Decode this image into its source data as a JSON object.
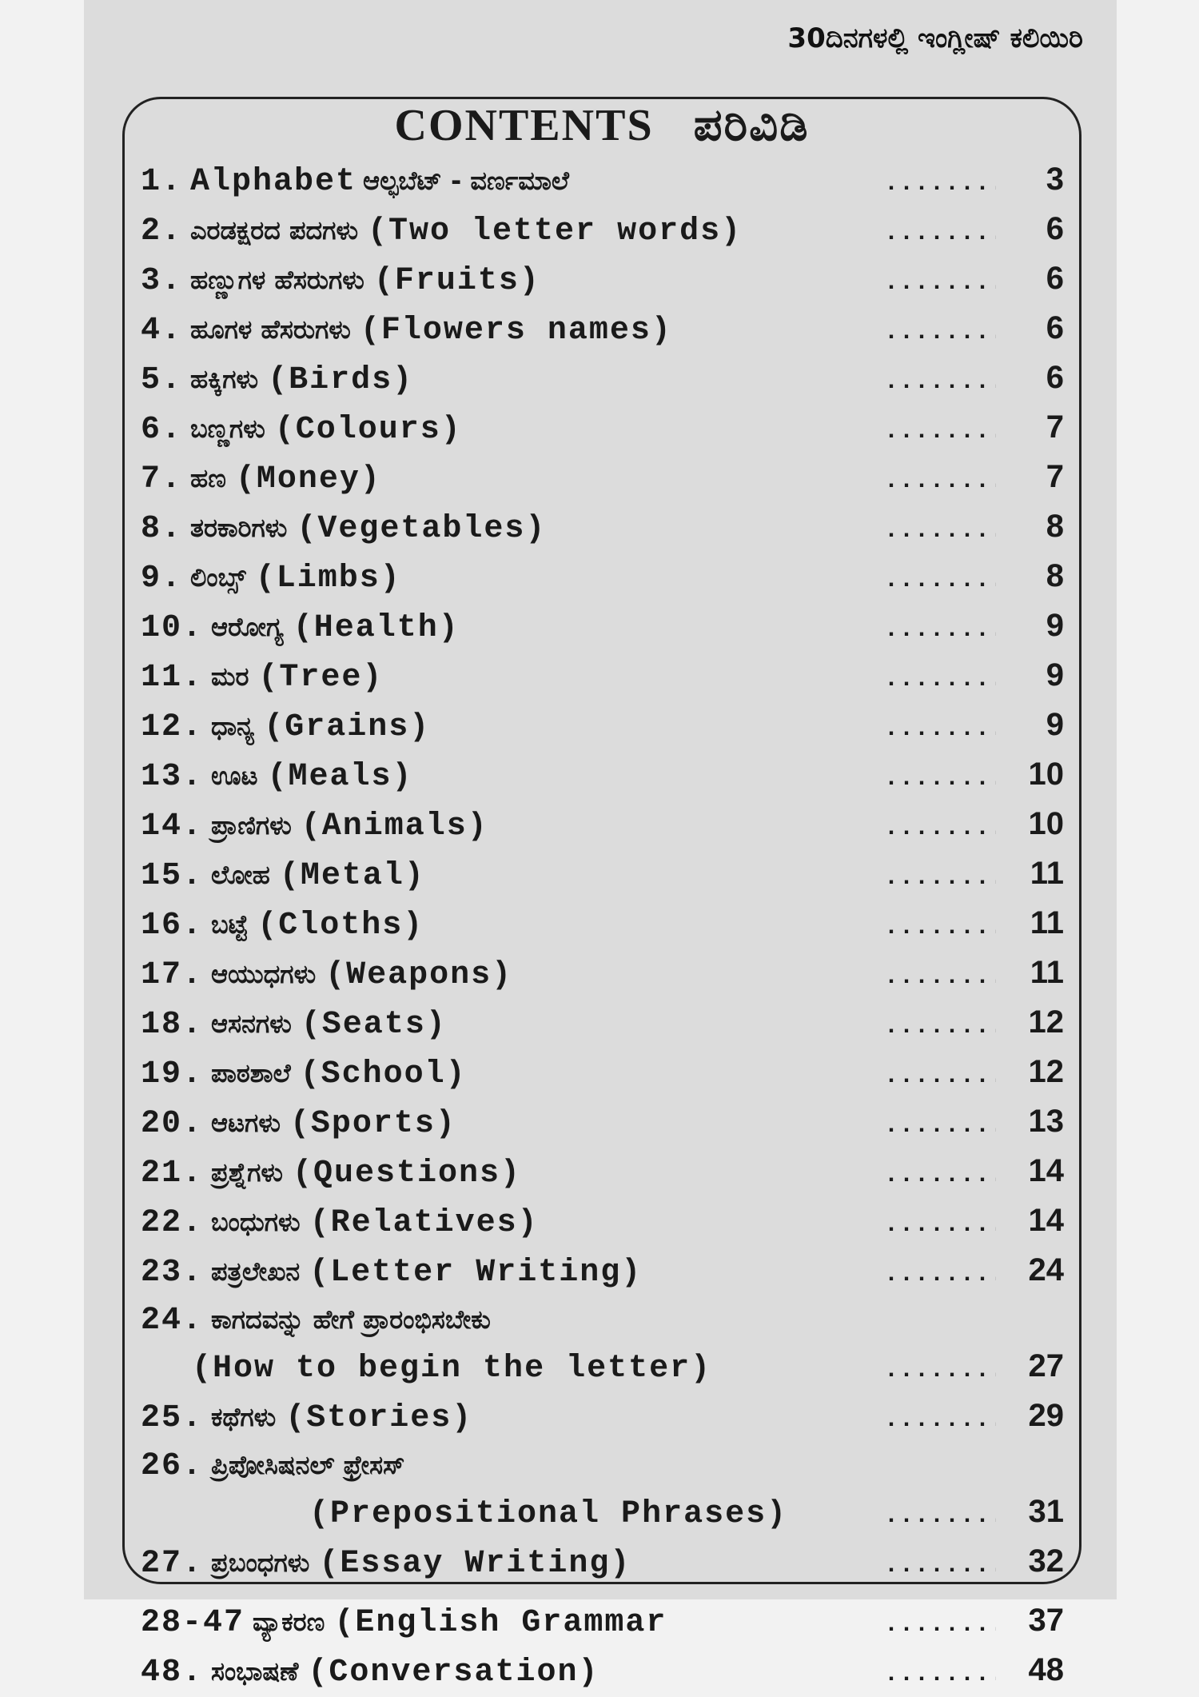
{
  "header": "30ದಿನಗಳಲ್ಲಿ ಇಂಗ್ಲೀಷ್ ಕಲಿಯಿರಿ",
  "title": {
    "en": "CONTENTS",
    "kn": "ಪರಿವಿಡಿ"
  },
  "leader": ".........",
  "entries": [
    {
      "num": "1.",
      "en": "Alphabet",
      "kn": "ಆಲ್ಫಬೆಟ್ - ವರ್ಣಮಾಲೆ",
      "page": "3",
      "order": "en-first"
    },
    {
      "num": "2.",
      "kn": "ಎರಡಕ್ಷರದ ಪದಗಳು",
      "en": "(Two letter words)",
      "page": "6"
    },
    {
      "num": "3.",
      "kn": "ಹಣ್ಣುಗಳ ಹೆಸರುಗಳು",
      "en": "(Fruits)",
      "page": "6"
    },
    {
      "num": "4.",
      "kn": "ಹೂಗಳ ಹೆಸರುಗಳು",
      "en": "(Flowers names)",
      "page": "6"
    },
    {
      "num": "5.",
      "kn": "ಹಕ್ಕಿಗಳು",
      "en": "(Birds)",
      "page": "6"
    },
    {
      "num": "6.",
      "kn": "ಬಣ್ಣಗಳು",
      "en": "(Colours)",
      "page": "7"
    },
    {
      "num": "7.",
      "kn": "ಹಣ",
      "en": "(Money)",
      "page": "7"
    },
    {
      "num": "8.",
      "kn": "ತರಕಾರಿಗಳು",
      "en": "(Vegetables)",
      "page": "8"
    },
    {
      "num": "9.",
      "kn": "ಲಿಂಬ್ಸ್",
      "en": "(Limbs)",
      "page": "8"
    },
    {
      "num": "10.",
      "kn": "ಆರೋಗ್ಯ",
      "en": "(Health)",
      "page": "9"
    },
    {
      "num": "11.",
      "kn": "ಮರ",
      "en": "(Tree)",
      "page": "9"
    },
    {
      "num": "12.",
      "kn": "ಧಾನ್ಯ",
      "en": "(Grains)",
      "page": "9"
    },
    {
      "num": "13.",
      "kn": "ಊಟ",
      "en": "(Meals)",
      "page": "10"
    },
    {
      "num": "14.",
      "kn": "ಪ್ರಾಣಿಗಳು",
      "en": "(Animals)",
      "page": "10"
    },
    {
      "num": "15.",
      "kn": "ಲೋಹ",
      "en": "(Metal)",
      "page": "11"
    },
    {
      "num": "16.",
      "kn": "ಬಟ್ಟೆ",
      "en": "(Cloths)",
      "page": "11"
    },
    {
      "num": "17.",
      "kn": "ಆಯುಧಗಳು",
      "en": "(Weapons)",
      "page": "11"
    },
    {
      "num": "18.",
      "kn": "ಆಸನಗಳು",
      "en": "(Seats)",
      "page": "12"
    },
    {
      "num": "19.",
      "kn": "ಪಾಠಶಾಲೆ",
      "en": "(School)",
      "page": "12"
    },
    {
      "num": "20.",
      "kn": "ಆಟಗಳು",
      "en": "(Sports)",
      "page": "13"
    },
    {
      "num": "21.",
      "kn": "ಪ್ರಶ್ನೆಗಳು",
      "en": "(Questions)",
      "page": "14"
    },
    {
      "num": "22.",
      "kn": "ಬಂಧುಗಳು",
      "en": "(Relatives)",
      "page": "14"
    },
    {
      "num": "23.",
      "kn": "ಪತ್ರಲೇಖನ",
      "en": "(Letter Writing)",
      "page": "24"
    },
    {
      "num": "24.",
      "kn": "ಕಾಗದವನ್ನು ಹೇಗೆ ಪ್ರಾರಂಭಿಸಬೇಕು",
      "en": "(How to begin the letter)",
      "page": "27",
      "wrap": "cont1"
    },
    {
      "num": "25.",
      "kn": "ಕಥೆಗಳು",
      "en": "(Stories)",
      "page": "29"
    },
    {
      "num": "26.",
      "kn": "ಪ್ರಿಪೋಸಿಷನಲ್ ಫ್ರೇಸಸ್",
      "en": "(Prepositional Phrases)",
      "page": "31",
      "wrap": "cont2"
    },
    {
      "num": "27.",
      "kn": "ಪ್ರಬಂಧಗಳು",
      "en": "(Essay Writing)",
      "page": "32"
    },
    {
      "num": "28-47",
      "kn": "ವ್ಯಾಕರಣ",
      "en": "(English Grammar",
      "page": "37",
      "gap": true
    },
    {
      "num": "48.",
      "kn": "ಸಂಭಾಷಣೆ",
      "en": "(Conversation)",
      "page": "48"
    }
  ]
}
